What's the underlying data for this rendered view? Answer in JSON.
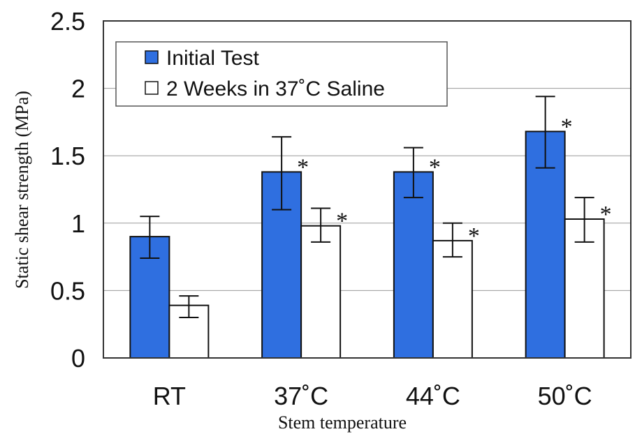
{
  "chart_data": {
    "type": "bar",
    "title": "",
    "xlabel": "Stem temperature",
    "ylabel": "Static shear strength (MPa)",
    "ylim": [
      0,
      2.5
    ],
    "yticks": [
      "0",
      "0.5",
      "1",
      "1.5",
      "2",
      "2.5"
    ],
    "grid": true,
    "legend_position": "top-left",
    "categories": [
      "RT",
      "37˚C",
      "44˚C",
      "50˚C"
    ],
    "series": [
      {
        "name": "Initial Test",
        "color": "#2f6fe0",
        "values": [
          0.9,
          1.38,
          1.38,
          1.68
        ],
        "error_low": [
          0.74,
          1.1,
          1.19,
          1.41
        ],
        "error_high": [
          1.05,
          1.64,
          1.56,
          1.94
        ],
        "significance": [
          "",
          "*",
          "*",
          "*"
        ]
      },
      {
        "name": "2 Weeks in 37˚C Saline",
        "color": "#ffffff",
        "values": [
          0.39,
          0.98,
          0.87,
          1.03
        ],
        "error_low": [
          0.3,
          0.86,
          0.75,
          0.86
        ],
        "error_high": [
          0.46,
          1.11,
          1.0,
          1.19
        ],
        "significance": [
          "",
          "*",
          "*",
          "*"
        ]
      }
    ]
  }
}
